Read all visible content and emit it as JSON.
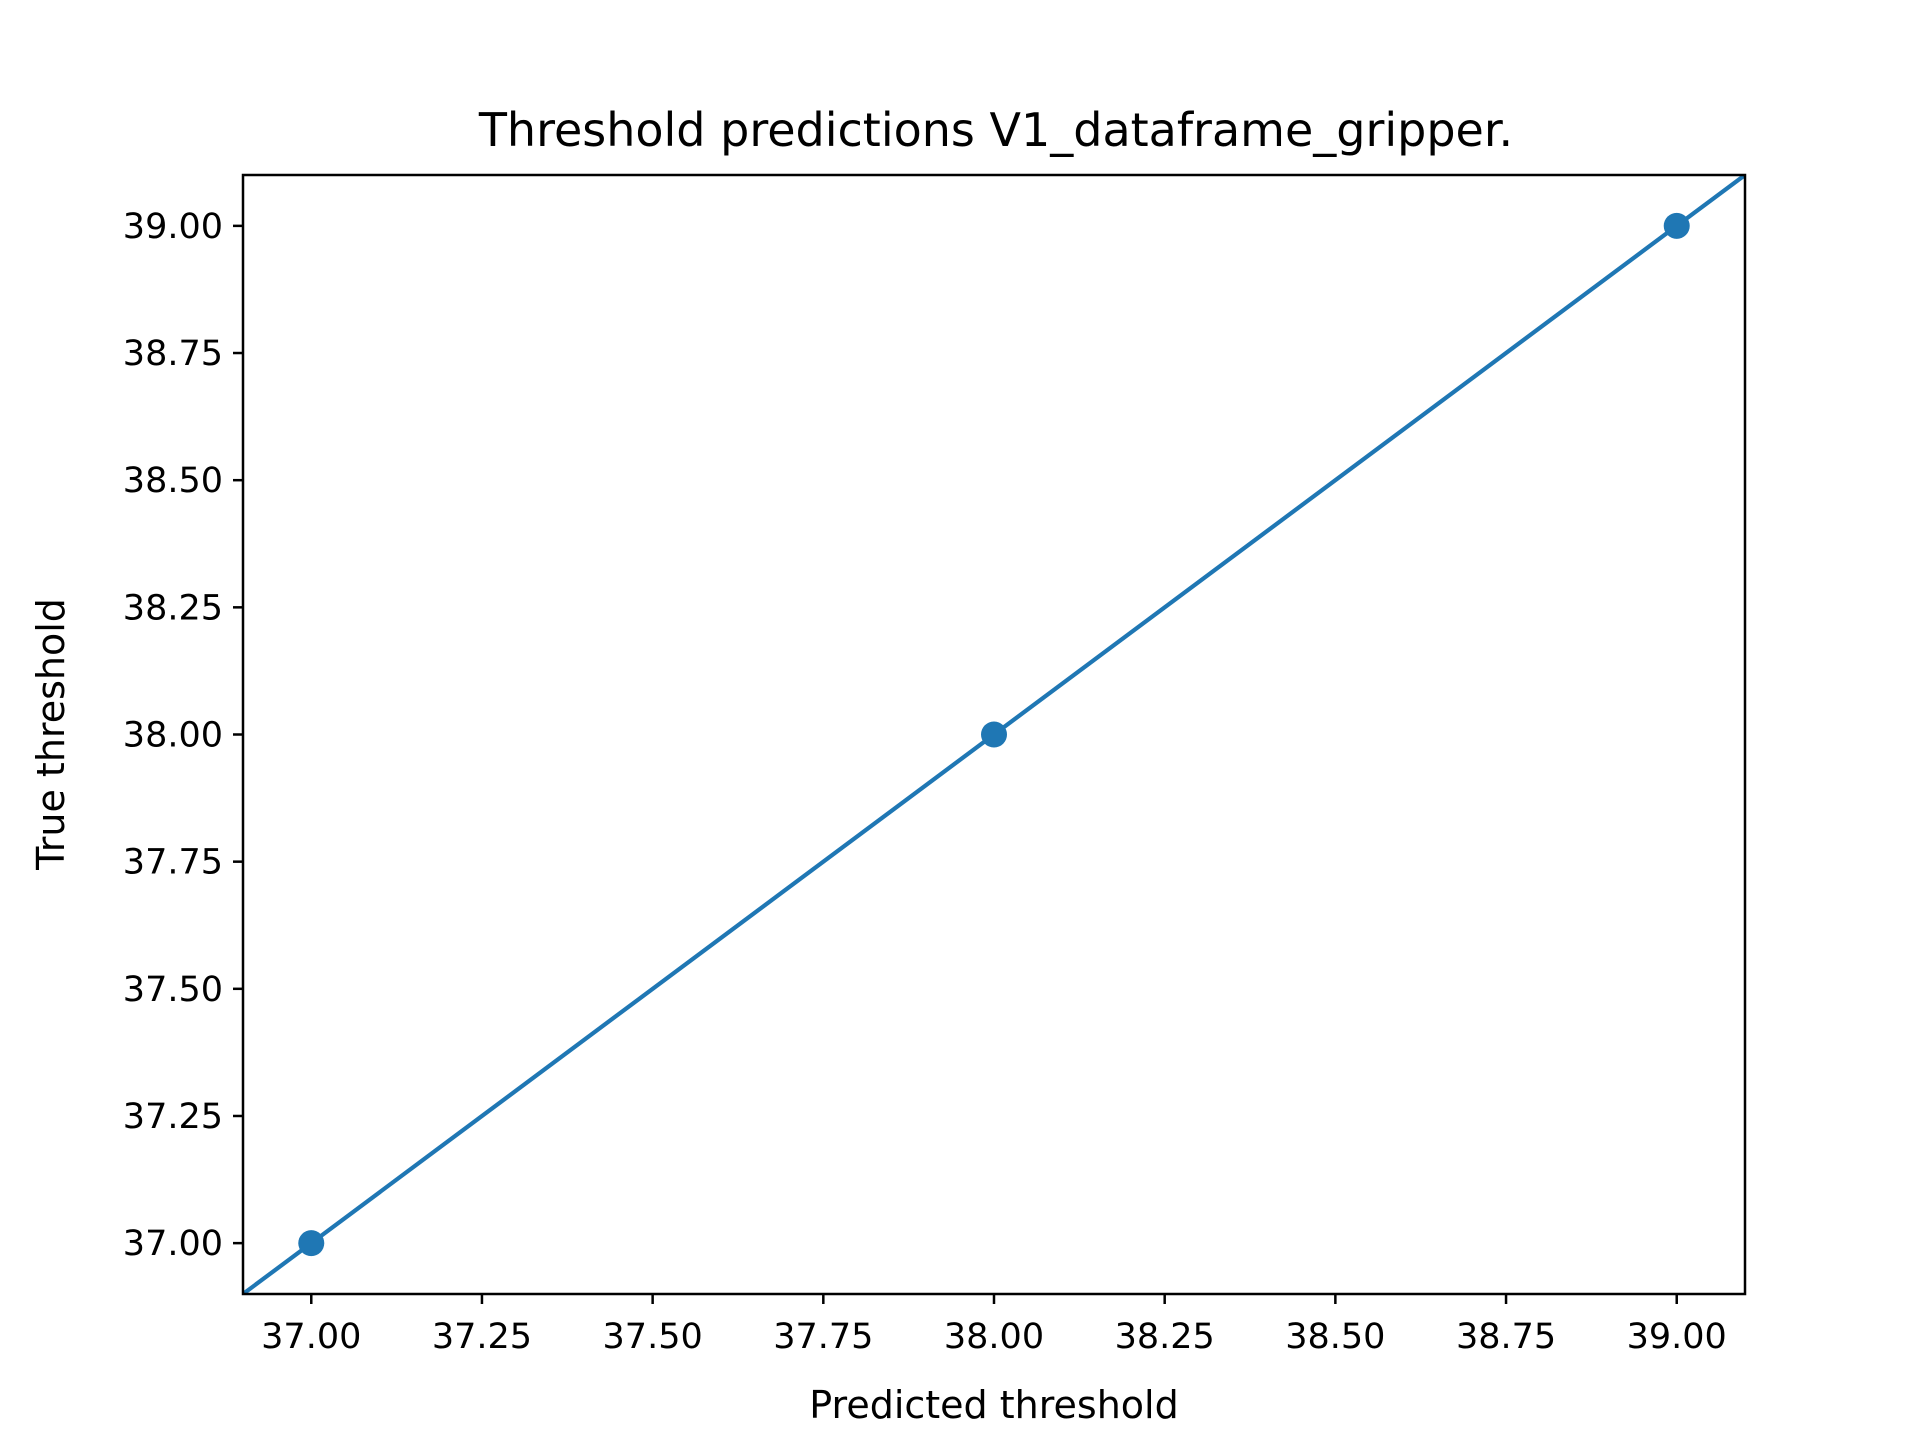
{
  "chart_data": {
    "type": "scatter",
    "title": "Threshold predictions V1_dataframe_gripper.",
    "xlabel": "Predicted threshold",
    "ylabel": "True threshold",
    "xlim": [
      36.9,
      39.1
    ],
    "ylim": [
      36.9,
      39.1
    ],
    "xticks": [
      "37.00",
      "37.25",
      "37.50",
      "37.75",
      "38.00",
      "38.25",
      "38.50",
      "38.75",
      "39.00"
    ],
    "yticks": [
      "37.00",
      "37.25",
      "37.50",
      "37.75",
      "38.00",
      "38.25",
      "38.50",
      "38.75",
      "39.00"
    ],
    "grid": false,
    "series": [
      {
        "style": "markers",
        "color": "#1f77b4",
        "x": [
          37.0,
          38.0,
          39.0
        ],
        "y": [
          37.0,
          38.0,
          39.0
        ]
      },
      {
        "style": "line",
        "color": "#1f77b4",
        "x": [
          36.9,
          39.1
        ],
        "y": [
          36.9,
          39.1
        ]
      }
    ]
  }
}
